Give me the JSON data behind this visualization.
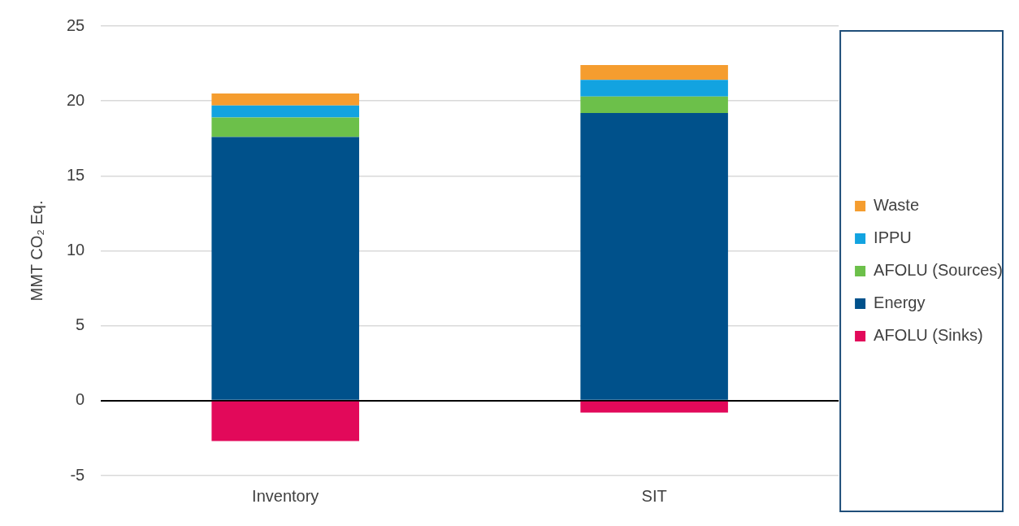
{
  "chart_data": {
    "type": "bar",
    "stacked": true,
    "ylabel": "MMT CO₂ Eq.",
    "categories": [
      "Inventory",
      "SIT"
    ],
    "series": [
      {
        "name": "AFOLU (Sinks)",
        "color": "#e2095a",
        "values": [
          -2.7,
          -0.8
        ]
      },
      {
        "name": "Energy",
        "color": "#00518b",
        "values": [
          17.6,
          19.2
        ]
      },
      {
        "name": "AFOLU (Sources)",
        "color": "#6cc04a",
        "values": [
          1.3,
          1.1
        ]
      },
      {
        "name": "IPPU",
        "color": "#12a3e0",
        "values": [
          0.8,
          1.1
        ]
      },
      {
        "name": "Waste",
        "color": "#f59d2f",
        "values": [
          0.8,
          1.0
        ]
      }
    ],
    "ylim": [
      -5,
      25
    ],
    "yticks": [
      -5,
      0,
      5,
      10,
      15,
      20,
      25
    ],
    "grid": "y",
    "legend": "right"
  }
}
